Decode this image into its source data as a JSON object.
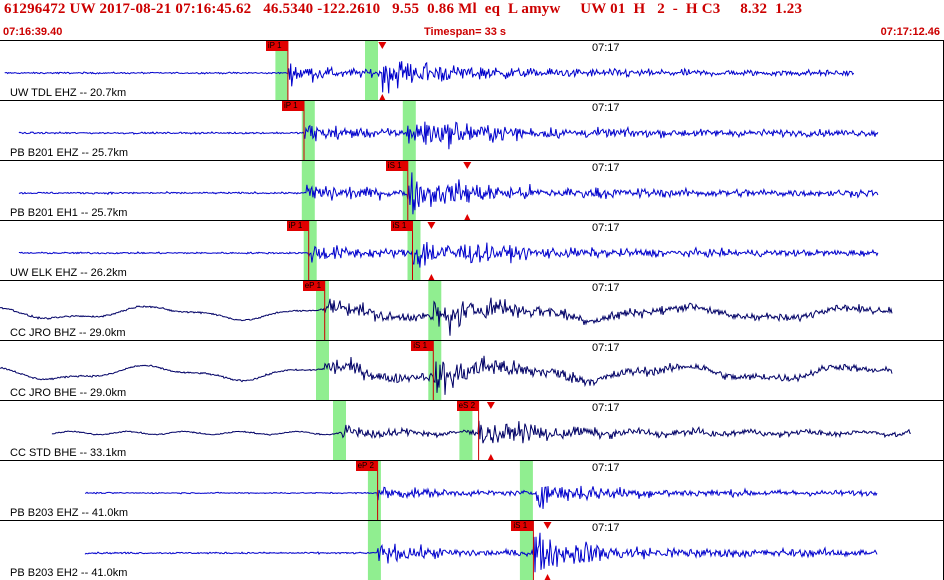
{
  "header": {
    "title": "61296472 UW 2017-08-21 07:16:45.62   46.5340 -122.2610   9.55  0.86 Ml  eq  L amyw     UW 01  H   2  -  H C3     8.32  1.23",
    "start_time": "07:16:39.40",
    "timespan": "Timespan=  33 s",
    "end_time": "07:17:12.46"
  },
  "colors": {
    "accent": "#cc0000",
    "trace_primary": "#0000cc",
    "trace_dark": "#000066",
    "pick_window": "#90ee90",
    "pick_tag": "#e00000"
  },
  "minute_tick_label": "07:17",
  "traces": [
    {
      "label": "UW TDL EHZ -- 20.7km",
      "color": "#0000cc",
      "kind": "hf",
      "picks": [
        {
          "tag": "iP 1",
          "t": 0.305
        },
        {
          "tag": "",
          "t": 0.405,
          "triangle": "down"
        }
      ],
      "windows": [
        0.297,
        0.392
      ],
      "start": 0.005,
      "end": 0.905,
      "p": 0.305,
      "s": 0.405,
      "amp": 0.55
    },
    {
      "label": "PB B201 EHZ -- 25.7km",
      "color": "#0000cc",
      "kind": "hf",
      "picks": [
        {
          "tag": "iP 1",
          "t": 0.322
        }
      ],
      "windows": [
        0.325,
        0.432
      ],
      "start": 0.02,
      "end": 0.93,
      "p": 0.322,
      "s": 0.432,
      "amp": 0.6
    },
    {
      "label": "PB B201 EH1 -- 25.7km",
      "color": "#0000cc",
      "kind": "hf",
      "picks": [
        {
          "tag": "iS 1",
          "t": 0.432
        },
        {
          "tag": "",
          "t": 0.495,
          "triangle": "down"
        }
      ],
      "windows": [
        0.325,
        0.432
      ],
      "start": 0.02,
      "end": 0.93,
      "p": 0.325,
      "s": 0.432,
      "amp": 0.65
    },
    {
      "label": "UW ELK EHZ -- 26.2km",
      "color": "#0000cc",
      "kind": "hf",
      "picks": [
        {
          "tag": "iP 1",
          "t": 0.327
        },
        {
          "tag": "iS 1",
          "t": 0.437
        },
        {
          "tag": "",
          "t": 0.457,
          "triangle": "down"
        }
      ],
      "windows": [
        0.327,
        0.437
      ],
      "start": 0.02,
      "end": 0.93,
      "p": 0.327,
      "s": 0.437,
      "amp": 0.6
    },
    {
      "label": "CC JRO BHZ -- 29.0km",
      "color": "#000066",
      "kind": "lf",
      "picks": [
        {
          "tag": "eP 1",
          "t": 0.344
        }
      ],
      "windows": [
        0.34,
        0.459
      ],
      "start": 0.0,
      "end": 0.945,
      "p": 0.344,
      "s": 0.459,
      "amp": 0.35
    },
    {
      "label": "CC JRO BHE -- 29.0km",
      "color": "#000066",
      "kind": "lf",
      "picks": [
        {
          "tag": "iS 1",
          "t": 0.459
        }
      ],
      "windows": [
        0.34,
        0.459
      ],
      "start": 0.0,
      "end": 0.945,
      "p": 0.344,
      "s": 0.459,
      "amp": 0.4
    },
    {
      "label": "CC STD BHE -- 33.1km",
      "color": "#000066",
      "kind": "mf",
      "picks": [
        {
          "tag": "eS 2",
          "t": 0.507
        },
        {
          "tag": "",
          "t": 0.52,
          "triangle": "down"
        }
      ],
      "windows": [
        0.358,
        0.492
      ],
      "start": 0.055,
      "end": 0.965,
      "p": 0.362,
      "s": 0.507,
      "amp": 0.55
    },
    {
      "label": "PB B203 EHZ -- 41.0km",
      "color": "#0000cc",
      "kind": "hf",
      "picks": [
        {
          "tag": "eP 2",
          "t": 0.4
        }
      ],
      "windows": [
        0.395,
        0.556
      ],
      "start": 0.09,
      "end": 0.93,
      "p": 0.4,
      "s": 0.568,
      "amp": 0.45
    },
    {
      "label": "PB B203 EH2 -- 41.0km",
      "color": "#0000cc",
      "kind": "hf",
      "picks": [
        {
          "tag": "iS 1",
          "t": 0.565
        },
        {
          "tag": "",
          "t": 0.58,
          "triangle": "down"
        }
      ],
      "windows": [
        0.395,
        0.556
      ],
      "start": 0.09,
      "end": 0.93,
      "p": 0.4,
      "s": 0.565,
      "amp": 0.6
    }
  ]
}
